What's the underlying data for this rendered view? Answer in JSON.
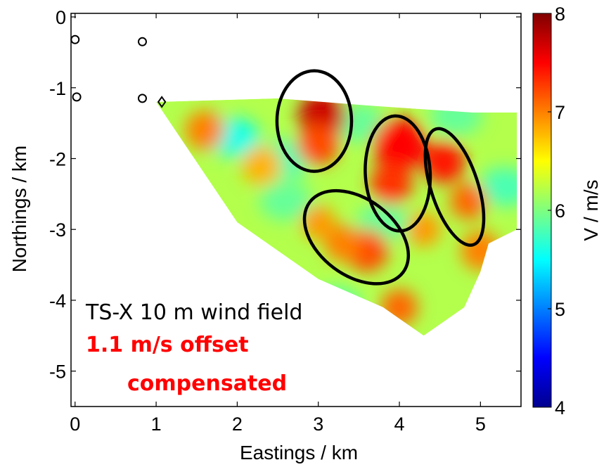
{
  "chart_data": {
    "type": "heatmap",
    "title": "",
    "xlabel": "Eastings / km",
    "ylabel": "Northings / km",
    "xlim": [
      -0.05,
      5.5
    ],
    "ylim": [
      -5.5,
      0.05
    ],
    "xticks": [
      0,
      1,
      2,
      3,
      4,
      5
    ],
    "yticks": [
      0,
      -1,
      -2,
      -3,
      -4,
      -5
    ],
    "xtick_labels": [
      "0",
      "1",
      "2",
      "3",
      "4",
      "5"
    ],
    "ytick_labels": [
      "0",
      "-1",
      "-2",
      "-3",
      "-4",
      "-5"
    ],
    "grid": false,
    "colormap": "jet",
    "colorbar": {
      "label": "V / m/s",
      "range": [
        4,
        8
      ],
      "ticks": [
        4,
        5,
        6,
        7,
        8
      ],
      "tick_labels": [
        "4",
        "5",
        "6",
        "7",
        "8"
      ]
    },
    "markers": {
      "circles": [
        {
          "x": 0.0,
          "y": -0.32
        },
        {
          "x": 0.83,
          "y": -0.35
        },
        {
          "x": 0.02,
          "y": -1.13
        },
        {
          "x": 0.83,
          "y": -1.15
        }
      ],
      "diamond": {
        "x": 1.07,
        "y": -1.2
      }
    },
    "wind_field_region": {
      "description_polygon_km": [
        [
          1.0,
          -1.2
        ],
        [
          2.5,
          -1.15
        ],
        [
          3.6,
          -1.25
        ],
        [
          4.9,
          -1.35
        ],
        [
          5.45,
          -1.35
        ],
        [
          5.45,
          -3.0
        ],
        [
          5.1,
          -3.2
        ],
        [
          5.0,
          -3.6
        ],
        [
          4.8,
          -4.1
        ],
        [
          4.3,
          -4.5
        ],
        [
          3.8,
          -4.1
        ],
        [
          3.0,
          -3.7
        ],
        [
          2.0,
          -2.9
        ],
        [
          1.0,
          -1.2
        ]
      ],
      "mean_speed": 6.3,
      "base_speed": 6.2
    },
    "hot_spots": [
      {
        "x": 3.05,
        "y": -1.4,
        "v": 7.7
      },
      {
        "x": 3.0,
        "y": -1.8,
        "v": 7.2
      },
      {
        "x": 4.0,
        "y": -1.8,
        "v": 7.5
      },
      {
        "x": 3.9,
        "y": -2.35,
        "v": 7.3
      },
      {
        "x": 4.55,
        "y": -2.05,
        "v": 7.4
      },
      {
        "x": 4.85,
        "y": -2.6,
        "v": 7.1
      },
      {
        "x": 1.6,
        "y": -1.6,
        "v": 7.0
      },
      {
        "x": 3.6,
        "y": -3.3,
        "v": 7.2
      },
      {
        "x": 3.3,
        "y": -3.2,
        "v": 7.0
      },
      {
        "x": 3.0,
        "y": -2.9,
        "v": 6.9
      },
      {
        "x": 5.0,
        "y": -3.3,
        "v": 7.0
      },
      {
        "x": 4.3,
        "y": -3.0,
        "v": 6.9
      },
      {
        "x": 4.0,
        "y": -4.1,
        "v": 7.1
      },
      {
        "x": 2.3,
        "y": -2.1,
        "v": 6.8
      }
    ],
    "cool_spots": [
      {
        "x": 1.95,
        "y": -1.7,
        "v": 5.6
      },
      {
        "x": 2.6,
        "y": -2.0,
        "v": 5.8
      },
      {
        "x": 3.5,
        "y": -1.5,
        "v": 5.9
      },
      {
        "x": 2.6,
        "y": -2.6,
        "v": 5.9
      },
      {
        "x": 3.8,
        "y": -2.9,
        "v": 5.9
      },
      {
        "x": 5.3,
        "y": -2.4,
        "v": 5.8
      },
      {
        "x": 4.7,
        "y": -1.4,
        "v": 5.9
      },
      {
        "x": 3.2,
        "y": -4.1,
        "v": 5.8
      }
    ],
    "highlight_ellipses": [
      {
        "cx": 2.95,
        "cy": -1.47,
        "rx": 0.46,
        "ry": 0.62,
        "rot_deg": 0
      },
      {
        "cx": 3.98,
        "cy": -2.21,
        "rx": 0.4,
        "ry": 0.71,
        "rot_deg": -3
      },
      {
        "cx": 4.68,
        "cy": -2.4,
        "rx": 0.29,
        "ry": 0.75,
        "rot_deg": -18
      },
      {
        "cx": 3.47,
        "cy": -3.11,
        "rx": 0.72,
        "ry": 0.47,
        "rot_deg": 37
      }
    ],
    "annotations": [
      {
        "text": "TS-X 10 m wind field",
        "color": "#000000",
        "bold": false
      },
      {
        "text": "1.1 m/s offset",
        "color": "#ff0000",
        "bold": true
      },
      {
        "text": "compensated",
        "color": "#ff0000",
        "bold": true
      }
    ]
  }
}
